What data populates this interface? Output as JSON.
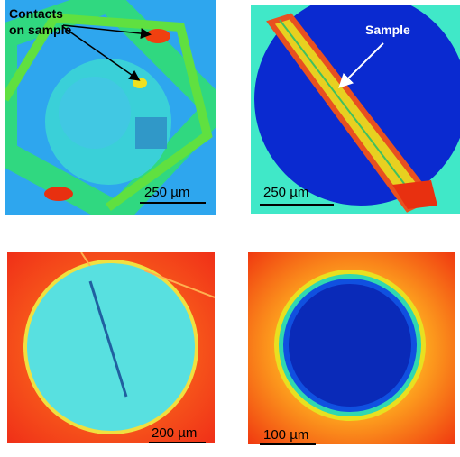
{
  "panels": [
    {
      "annotation": [
        "Contacts",
        "on sample"
      ],
      "scale_bar": "250 µm"
    },
    {
      "annotation": [
        "Sample"
      ],
      "scale_bar": "250 µm"
    },
    {
      "scale_bar": "200 µm"
    },
    {
      "scale_bar": "100 µm"
    }
  ]
}
